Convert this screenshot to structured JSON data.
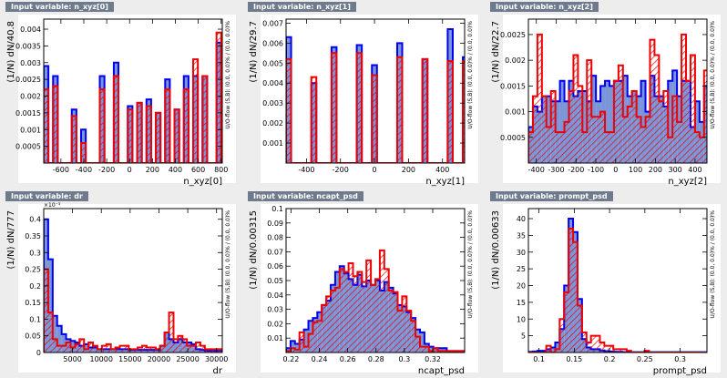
{
  "panels": [
    {
      "title": "Input variable: n_xyz[0]",
      "ylabel": "(1/N) dN/40.8",
      "xlabel": "n_xyz[0]",
      "overflow": "U/O-flow (S,B): (0.0, 0.0)% / (0.0, 0.0)%"
    },
    {
      "title": "Input variable: n_xyz[1]",
      "ylabel": "(1/N) dN/29.7",
      "xlabel": "n_xyz[1]",
      "overflow": "U/O-flow (S,B): (0.0, 0.0)% / (0.0, 0.0)%"
    },
    {
      "title": "Input variable: n_xyz[2]",
      "ylabel": "(1/N) dN/22.7",
      "xlabel": "n_xyz[2]",
      "overflow": "U/O-flow (S,B): (0.0, 0.0)% / (0.0, 0.0)%"
    },
    {
      "title": "Input variable: dr",
      "ylabel": "(1/N) dN/777",
      "xlabel": "dr",
      "overflow": "U/O-flow (S,B): (0.0, 0.0)% / (0.0, 0.0)%",
      "exponent": "×10⁻³"
    },
    {
      "title": "Input variable: ncapt_psd",
      "ylabel": "(1/N) dN/0.00315",
      "xlabel": "ncapt_psd",
      "overflow": "U/O-flow (S,B): (0.0, 0.0)% / (0.0, 0.0)%"
    },
    {
      "title": "Input variable: prompt_psd",
      "ylabel": "(1/N) dN/0.00633",
      "xlabel": "prompt_psd",
      "overflow": "U/O-flow (S,B): (0.0, 0.0)% / (0.0, 0.0)%"
    }
  ],
  "colors": {
    "signal_fill": "#7a96d8",
    "signal_line": "#0000ee",
    "background_line": "#ee0000",
    "background_hatch": "#ee0000",
    "frame": "#000000",
    "panel_bg": "#ffffff",
    "tab_bg": "#6d7b8d"
  },
  "chart_data": [
    {
      "type": "bar",
      "title": "Input variable: n_xyz[0]",
      "xlabel": "n_xyz[0]",
      "ylabel": "(1/N) dN/40.8",
      "xlim": [
        -750,
        810
      ],
      "ylim": [
        0,
        0.0043
      ],
      "xticks": [
        -600,
        -400,
        -200,
        0,
        200,
        400,
        600,
        800
      ],
      "yticks": [
        0.0005,
        0.001,
        0.0015,
        0.002,
        0.0025,
        0.003,
        0.0035,
        0.004
      ],
      "ytick_labels": [
        "0.0005",
        "0.001",
        "0.0015",
        "0.002",
        "0.0025",
        "0.003",
        "0.0035",
        "0.004"
      ],
      "series": [
        {
          "name": "Signal",
          "x0": -750,
          "w": 40.8,
          "values": [
            0.0029,
            0,
            0.0026,
            0,
            0,
            0,
            0.0016,
            0,
            0.001,
            0,
            0,
            0,
            0.0026,
            0,
            0,
            0.003,
            0,
            0,
            0.0017,
            0,
            0.0018,
            0,
            0.0019,
            0,
            0.0015,
            0,
            0.0025,
            0,
            0.0016,
            0,
            0.0026,
            0,
            0.0026,
            0,
            0.0026,
            0,
            0,
            0.0036
          ]
        },
        {
          "name": "Background",
          "x0": -750,
          "w": 40.8,
          "values": [
            0.0022,
            0,
            0.0023,
            0,
            0,
            0,
            0.0014,
            0,
            0.0006,
            0,
            0,
            0,
            0.0022,
            0,
            0,
            0.0026,
            0,
            0,
            0.0016,
            0,
            0.0018,
            0,
            0.0017,
            0,
            0.0015,
            0,
            0.0022,
            0,
            0.0016,
            0,
            0.0022,
            0,
            0.0031,
            0,
            0.0026,
            0,
            0,
            0.0039
          ]
        }
      ]
    },
    {
      "type": "bar",
      "title": "Input variable: n_xyz[1]",
      "xlabel": "n_xyz[1]",
      "ylabel": "(1/N) dN/29.7",
      "xlim": [
        -520,
        530
      ],
      "ylim": [
        0,
        0.0072
      ],
      "xticks": [
        -400,
        -200,
        0,
        200,
        400
      ],
      "yticks": [
        0.001,
        0.002,
        0.003,
        0.004,
        0.005,
        0.006,
        0.007
      ],
      "ytick_labels": [
        "0.001",
        "0.002",
        "0.003",
        "0.004",
        "0.005",
        "0.006",
        "0.007"
      ],
      "series": [
        {
          "name": "Signal",
          "x0": -520,
          "w": 29.7,
          "values": [
            0.0063,
            0,
            0,
            0,
            0,
            0.004,
            0,
            0,
            0,
            0.0058,
            0,
            0,
            0,
            0,
            0.0059,
            0,
            0,
            0.0049,
            0,
            0,
            0,
            0,
            0.006,
            0,
            0,
            0,
            0,
            0.0052,
            0,
            0,
            0,
            0,
            0.0067,
            0,
            0,
            0.0053
          ]
        },
        {
          "name": "Background",
          "x0": -520,
          "w": 29.7,
          "values": [
            0.0052,
            0,
            0,
            0,
            0,
            0.0043,
            0,
            0,
            0,
            0.0055,
            0,
            0,
            0,
            0,
            0.0055,
            0,
            0,
            0.0044,
            0,
            0,
            0,
            0,
            0.0053,
            0,
            0,
            0,
            0,
            0.0052,
            0,
            0,
            0,
            0,
            0.0051,
            0,
            0,
            0.0051
          ]
        }
      ]
    },
    {
      "type": "bar",
      "title": "Input variable: n_xyz[2]",
      "xlabel": "n_xyz[2]",
      "ylabel": "(1/N) dN/22.7",
      "xlim": [
        -440,
        460
      ],
      "ylim": [
        0,
        0.0028
      ],
      "xticks": [
        -400,
        -300,
        -200,
        -100,
        0,
        100,
        200,
        300,
        400
      ],
      "yticks": [
        0.0005,
        0.001,
        0.0015,
        0.002,
        0.0025
      ],
      "ytick_labels": [
        "0.0005",
        "0.001",
        "0.0015",
        "0.002",
        "0.0025"
      ],
      "series": [
        {
          "name": "Signal",
          "x0": -440,
          "w": 22.7,
          "values": [
            0.0007,
            0.0011,
            0.001,
            0.0013,
            0.0013,
            0.0012,
            0.0012,
            0.0016,
            0.0012,
            0.0016,
            0.0013,
            0.0014,
            0.0014,
            0.0012,
            0.0017,
            0.0012,
            0.0015,
            0.0016,
            0.0015,
            0.0016,
            0.0016,
            0.0017,
            0.0013,
            0.0014,
            0.0013,
            0.0016,
            0.001,
            0.0017,
            0.0013,
            0.0013,
            0.0011,
            0.0016,
            0.0018,
            0.0013,
            0.0016,
            0.0016,
            0.0007,
            0.0012,
            0.0008,
            0.0015
          ]
        },
        {
          "name": "Background",
          "x0": -440,
          "w": 22.7,
          "values": [
            0.0006,
            0.0013,
            0.0025,
            0.0013,
            0.0007,
            0.0014,
            0.0006,
            0.0006,
            0.0008,
            0.0014,
            0.0021,
            0.0015,
            0.0006,
            0.002,
            0.0009,
            0.0009,
            0.001,
            0.0006,
            0.0006,
            0.0016,
            0.0019,
            0.0009,
            0.0011,
            0.0014,
            0.0009,
            0.0007,
            0.0009,
            0.0024,
            0.0021,
            0.0012,
            0.0014,
            0.0005,
            0.0013,
            0.0008,
            0.0025,
            0.0016,
            0.0021,
            0.0006,
            0.0005,
            0.0018
          ]
        }
      ]
    },
    {
      "type": "bar",
      "title": "Input variable: dr",
      "xlabel": "dr",
      "ylabel": "(1/N) dN/777",
      "xlim": [
        0,
        31000
      ],
      "ylim": [
        0,
        0.000432
      ],
      "xticks": [
        5000,
        10000,
        15000,
        20000,
        25000,
        30000
      ],
      "yticks": [
        0,
        5e-05,
        0.0001,
        0.00015,
        0.0002,
        0.00025,
        0.0003,
        0.00035,
        0.0004
      ],
      "ytick_labels": [
        "0",
        "0.05",
        "0.1",
        "0.15",
        "0.2",
        "0.25",
        "0.3",
        "0.35",
        "0.4"
      ],
      "series": [
        {
          "name": "Signal",
          "x0": 0,
          "w": 777,
          "values": [
            0.0004,
            0.00028,
            0.00011,
            8e-05,
            5.5e-05,
            4e-05,
            3.5e-05,
            3e-05,
            2e-05,
            2.5e-05,
            1.5e-05,
            1.5e-05,
            1e-05,
            1e-05,
            1e-05,
            1e-05,
            1e-05,
            1e-05,
            1e-05,
            8e-06,
            8e-06,
            8e-06,
            8e-06,
            8e-06,
            8e-06,
            8e-06,
            2e-05,
            6e-05,
            4e-05,
            3e-05,
            4e-05,
            3e-05,
            3e-05,
            2.5e-05,
            1e-05,
            8e-06,
            5e-06,
            5e-06,
            5e-06,
            5e-06
          ]
        },
        {
          "name": "Background",
          "x0": 0,
          "w": 777,
          "values": [
            0.00025,
            0.00012,
            4e-05,
            2e-05,
            2e-05,
            3e-05,
            1.5e-05,
            2.5e-05,
            4e-05,
            1e-05,
            3e-05,
            2e-05,
            1e-05,
            2e-05,
            2.5e-05,
            1e-05,
            1.5e-05,
            2e-05,
            2e-05,
            1e-05,
            1e-05,
            1.5e-05,
            2e-05,
            1.5e-05,
            1.5e-05,
            1e-05,
            2e-05,
            6e-05,
            0.00012,
            4e-05,
            5e-05,
            4e-05,
            2e-05,
            2e-05,
            3e-05,
            2e-05,
            1e-05,
            1e-05,
            1e-05,
            1e-05
          ]
        }
      ]
    },
    {
      "type": "bar",
      "title": "Input variable: ncapt_psd",
      "xlabel": "ncapt_psd",
      "ylabel": "(1/N) dN/0.00315",
      "xlim": [
        0.2165,
        0.3425
      ],
      "ylim": [
        0,
        0.1
      ],
      "xticks": [
        0.22,
        0.24,
        0.26,
        0.28,
        0.3,
        0.32
      ],
      "yticks": [
        0.01,
        0.02,
        0.03,
        0.04,
        0.05,
        0.06,
        0.07,
        0.08,
        0.09,
        0.1
      ],
      "ytick_labels": [
        "0.01",
        "0.02",
        "0.03",
        "0.04",
        "0.05",
        "0.06",
        "0.07",
        "0.08",
        "0.09",
        "0.1"
      ],
      "series": [
        {
          "name": "Signal",
          "x0": 0.2165,
          "w": 0.00315,
          "values": [
            0.003,
            0.008,
            0.006,
            0.009,
            0.016,
            0.022,
            0.024,
            0.028,
            0.033,
            0.036,
            0.047,
            0.056,
            0.06,
            0.055,
            0.051,
            0.047,
            0.054,
            0.046,
            0.05,
            0.047,
            0.05,
            0.043,
            0.049,
            0.045,
            0.041,
            0.033,
            0.032,
            0.028,
            0.024,
            0.016,
            0.014,
            0.006,
            0.004,
            0.003,
            0.003,
            0.003,
            0.001,
            0.001,
            0.001,
            0.001
          ]
        },
        {
          "name": "Background",
          "x0": 0.2165,
          "w": 0.00315,
          "values": [
            0.001,
            0.003,
            0.002,
            0.014,
            0.004,
            0.013,
            0.021,
            0.022,
            0.033,
            0.039,
            0.043,
            0.045,
            0.058,
            0.056,
            0.062,
            0.053,
            0.056,
            0.049,
            0.064,
            0.047,
            0.051,
            0.071,
            0.058,
            0.043,
            0.042,
            0.029,
            0.039,
            0.029,
            0.022,
            0.011,
            0.004,
            0.004,
            0.001,
            0.003,
            0.001,
            0.001,
            0.001,
            0.001,
            0.001,
            0.001
          ]
        }
      ]
    },
    {
      "type": "bar",
      "title": "Input variable: prompt_psd",
      "xlabel": "prompt_psd",
      "ylabel": "(1/N) dN/0.00633",
      "xlim": [
        0.085,
        0.338
      ],
      "ylim": [
        0,
        43
      ],
      "xticks": [
        0.1,
        0.15,
        0.2,
        0.25,
        0.3
      ],
      "yticks": [
        5,
        10,
        15,
        20,
        25,
        30,
        35,
        40
      ],
      "ytick_labels": [
        "5",
        "10",
        "15",
        "20",
        "25",
        "30",
        "35",
        "40"
      ],
      "series": [
        {
          "name": "Signal",
          "x0": 0.085,
          "w": 0.00633,
          "values": [
            0.2,
            0.3,
            0.5,
            0.5,
            1.0,
            1.5,
            3.0,
            7.0,
            20.0,
            40.0,
            36.0,
            16.0,
            4.0,
            1.5,
            1.0,
            1.0,
            0.6,
            0.4,
            0.3,
            0.2,
            0.2,
            0.1,
            0.1,
            0.1,
            0.1,
            0.1,
            0.1,
            0.1,
            0.1,
            0.1,
            0.1,
            0.1,
            0.1,
            0.1,
            0.1,
            0.1,
            0.1,
            0.1,
            0.1,
            0.1
          ]
        },
        {
          "name": "Background",
          "x0": 0.085,
          "w": 0.00633,
          "values": [
            0,
            0,
            0,
            0,
            2.0,
            0,
            1.0,
            10.0,
            18.0,
            37.0,
            33.0,
            14.0,
            6.0,
            3.0,
            5.0,
            5.0,
            3.0,
            2.0,
            2.0,
            1.0,
            1.0,
            1.0,
            0.5,
            0,
            0,
            0,
            0.5,
            0,
            0,
            0,
            0,
            0,
            0,
            0,
            0,
            0,
            0,
            0,
            0,
            0
          ]
        }
      ]
    }
  ]
}
